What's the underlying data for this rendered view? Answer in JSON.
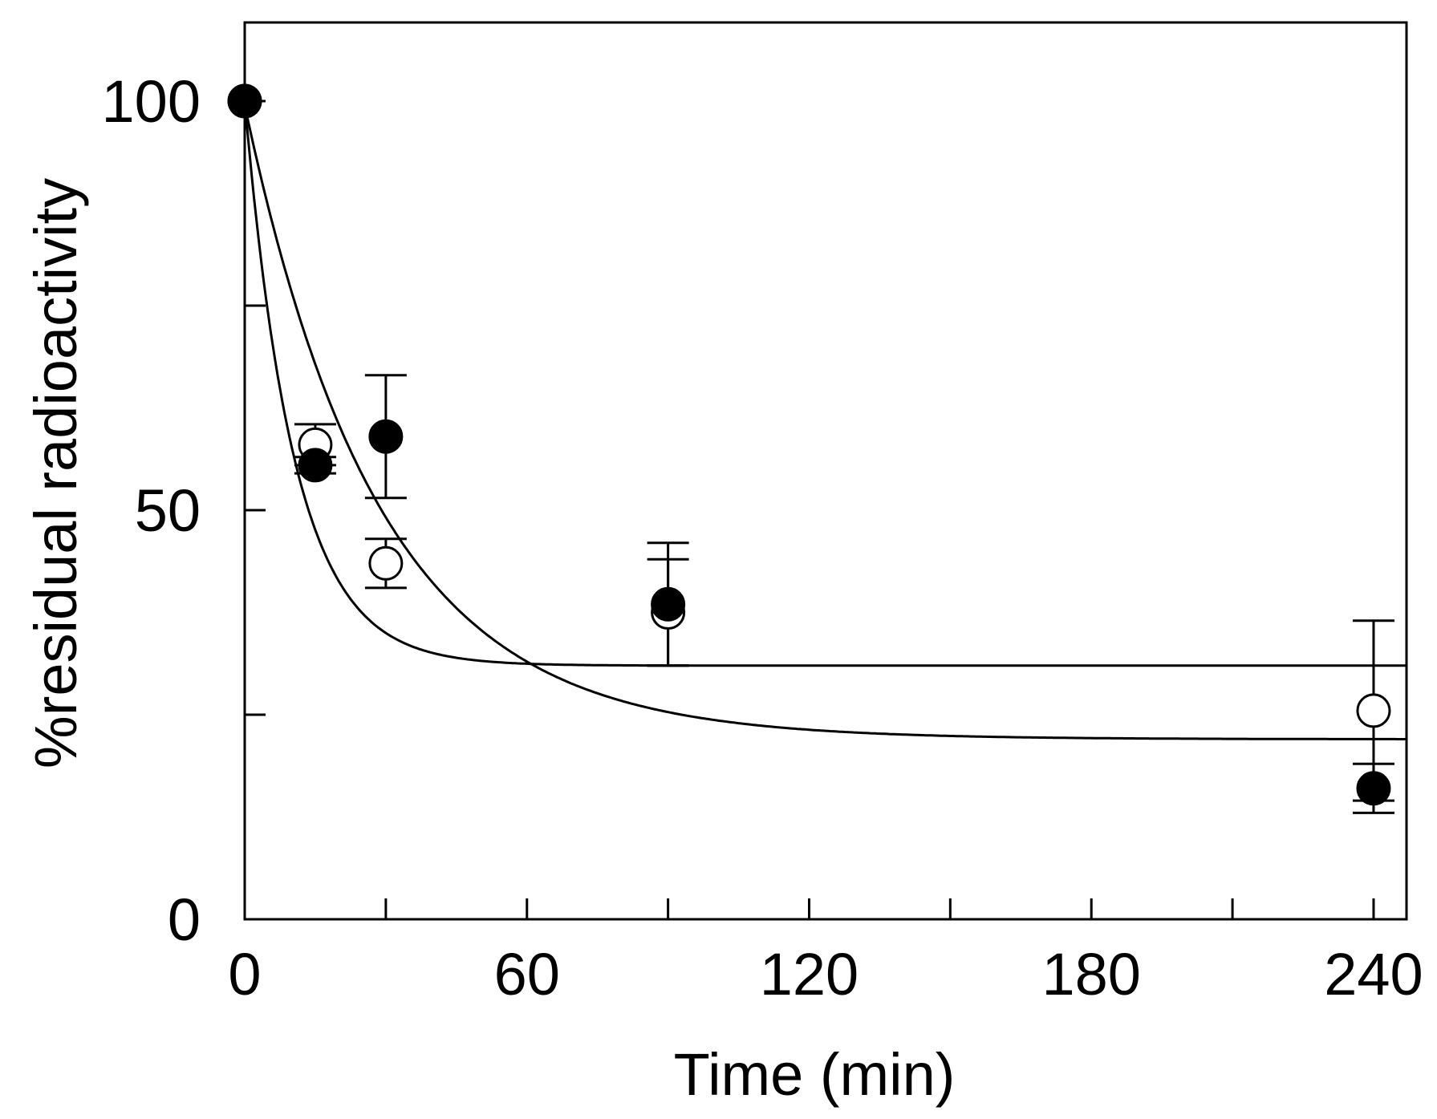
{
  "chart_data": {
    "type": "scatter",
    "title": "",
    "xlabel": "Time (min)",
    "ylabel": "%residual radioactivity",
    "xlim": [
      0,
      247
    ],
    "ylim": [
      0,
      110
    ],
    "x_ticks": [
      0,
      60,
      120,
      180,
      240
    ],
    "x_minor_ticks": [
      30,
      90,
      150,
      210
    ],
    "y_ticks": [
      0,
      50,
      100
    ],
    "y_minor_ticks": [
      25,
      75
    ],
    "x_tick_labels": [
      "0",
      "60",
      "120",
      "180",
      "240"
    ],
    "y_tick_labels": [
      "0",
      "50",
      "100"
    ],
    "grid": false,
    "legend": "none",
    "series": [
      {
        "name": "open circles",
        "marker": "open-circle",
        "points": [
          {
            "x": 0,
            "y": 100,
            "err": 0
          },
          {
            "x": 15,
            "y": 58,
            "err": 2.5
          },
          {
            "x": 30,
            "y": 43.5,
            "err": 3
          },
          {
            "x": 90,
            "y": 37.5,
            "err": 6.5
          },
          {
            "x": 240,
            "y": 25.5,
            "err": 11
          }
        ],
        "fit": {
          "a": 69,
          "k": 0.095,
          "c": 31
        }
      },
      {
        "name": "filled circles",
        "marker": "filled-circle",
        "points": [
          {
            "x": 0,
            "y": 100,
            "err": 0
          },
          {
            "x": 15,
            "y": 55.5,
            "err": 1
          },
          {
            "x": 30,
            "y": 59,
            "err": 7.5
          },
          {
            "x": 90,
            "y": 38.5,
            "err": 7.5
          },
          {
            "x": 240,
            "y": 16,
            "err": 3
          }
        ],
        "fit": {
          "a": 77.5,
          "k": 0.035,
          "c": 22
        }
      }
    ]
  }
}
